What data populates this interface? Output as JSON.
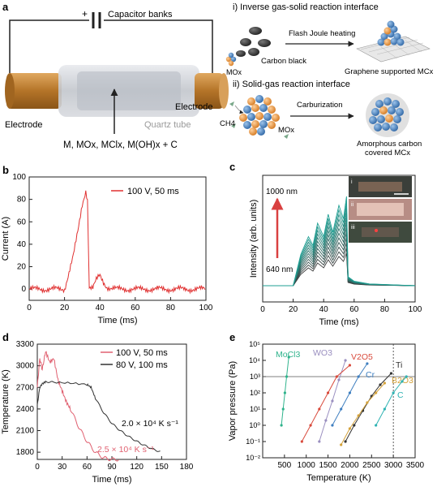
{
  "panel_labels": {
    "a": "a",
    "b": "b",
    "c": "c",
    "d": "d",
    "e": "e"
  },
  "panel_a": {
    "battery_label": "Capacitor banks",
    "plus_sign": "+",
    "electrode_left": "Electrode",
    "electrode_right": "Electrode",
    "tube_label": "Quartz tube",
    "reactants": "M, MOx, MClx, M(OH)x + C",
    "scheme_i_title": "i) Inverse gas-solid reaction interface",
    "scheme_i_mox": "MOx",
    "scheme_i_carbon": "Carbon black",
    "scheme_i_process": "Flash Joule heating",
    "scheme_i_product": "Graphene supported MCx",
    "scheme_ii_title": "ii) Solid-gas reaction interface",
    "scheme_ii_ch4": "CH4",
    "scheme_ii_mox": "MOx",
    "scheme_ii_process": "Carburization",
    "scheme_ii_product_1": "Amorphous carbon",
    "scheme_ii_product_2": "covered MCx",
    "colors": {
      "electrode": "#c8893a",
      "tube": "#c9ccd1",
      "sphere_blue": "#3f7fc0",
      "sphere_orange": "#e8963c",
      "carbon": "#3a3a3a"
    }
  },
  "chart_data": [
    {
      "id": "b",
      "type": "line",
      "xlabel": "Time (ms)",
      "ylabel": "Current (A)",
      "xlim": [
        0,
        100
      ],
      "ylim": [
        -10,
        100
      ],
      "xticks": [
        0,
        20,
        40,
        60,
        80,
        100
      ],
      "yticks": [
        0,
        20,
        40,
        60,
        80,
        100
      ],
      "legend": "100 V, 50 ms",
      "legend_position": "top-right",
      "color": "#e03030",
      "x": [
        0,
        10,
        20,
        25,
        28,
        30,
        32,
        33,
        34,
        36,
        38,
        40,
        42,
        44,
        46,
        50,
        60,
        80,
        100
      ],
      "y": [
        0,
        0,
        0,
        30,
        55,
        75,
        88,
        80,
        2,
        1,
        8,
        12,
        6,
        2,
        1,
        0,
        0,
        0,
        0
      ]
    },
    {
      "id": "c",
      "type": "line",
      "xlabel": "Time (ms)",
      "ylabel": "Intensity (arb. units)",
      "xlim": [
        0,
        100
      ],
      "xticks": [
        0,
        20,
        40,
        60,
        80,
        100
      ],
      "annotation_top": "1000 nm",
      "annotation_bottom": "640 nm",
      "inset_labels": [
        "i",
        "ii",
        "iii"
      ],
      "x": [
        0,
        20,
        25,
        30,
        33,
        36,
        40,
        43,
        46,
        50,
        53,
        55,
        56,
        60,
        70,
        100
      ],
      "y": [
        0,
        0,
        0.35,
        0.55,
        0.45,
        0.7,
        0.55,
        0.8,
        0.6,
        0.9,
        0.75,
        1.0,
        0.1,
        0.05,
        0.02,
        0
      ],
      "num_curves": 12,
      "color_low": "#3c3c3c",
      "color_high": "#1f9f93"
    },
    {
      "id": "d",
      "type": "line",
      "xlabel": "Time (ms)",
      "ylabel": "Temperature (K)",
      "xlim": [
        0,
        180
      ],
      "ylim": [
        1700,
        3300
      ],
      "xticks": [
        0,
        30,
        60,
        90,
        120,
        150,
        180
      ],
      "yticks": [
        1800,
        2100,
        2400,
        2700,
        3000,
        3300
      ],
      "legend_position": "top-right",
      "annotation_black": "2.0 × 10⁴ K s⁻¹",
      "annotation_red": "2.5 × 10⁴ K s⁻¹",
      "series": [
        {
          "name": "100 V, 50 ms",
          "color": "#e06070",
          "x": [
            0,
            3,
            6,
            10,
            15,
            20,
            25,
            30,
            35,
            40,
            50,
            60,
            70,
            80,
            90,
            100
          ],
          "y": [
            2700,
            3100,
            2950,
            3200,
            3050,
            3100,
            2800,
            2650,
            2500,
            2400,
            2150,
            1950,
            1800,
            1720,
            1700,
            1700
          ]
        },
        {
          "name": "80 V, 100 ms",
          "color": "#333333",
          "x": [
            0,
            3,
            6,
            10,
            20,
            40,
            60,
            65,
            70,
            80,
            90,
            100,
            110,
            120,
            130,
            140,
            150
          ],
          "y": [
            2450,
            2700,
            2750,
            2780,
            2770,
            2760,
            2740,
            2700,
            2550,
            2350,
            2200,
            2100,
            2020,
            1950,
            1890,
            1840,
            1800
          ]
        }
      ]
    },
    {
      "id": "e",
      "type": "line",
      "xlabel": "Temperature (K)",
      "ylabel": "Vapor pressure (Pa)",
      "xlim": [
        0,
        3500
      ],
      "ylim_log10": [
        -2,
        5
      ],
      "xticks": [
        500,
        1000,
        1500,
        2000,
        2500,
        3000,
        3500
      ],
      "ytick_labels": [
        "10⁻²",
        "10⁻¹",
        "10⁰",
        "10¹",
        "10²",
        "10³",
        "10⁴",
        "10⁵"
      ],
      "hline_log10": 3,
      "vline_x": 3000,
      "series": [
        {
          "name": "MoCl3",
          "color": "#2fb38c",
          "x": [
            430,
            470,
            510,
            550,
            600
          ],
          "y_log10": [
            0,
            1,
            2,
            3,
            4.2
          ]
        },
        {
          "name": "WO3",
          "color": "#9a8fc0",
          "x": [
            1300,
            1450,
            1600,
            1750,
            1900
          ],
          "y_log10": [
            -1,
            0.3,
            1.5,
            2.8,
            4
          ]
        },
        {
          "name": "V2O5",
          "color": "#d94a3c",
          "x": [
            900,
            1100,
            1300,
            1500,
            1700,
            2000
          ],
          "y_log10": [
            -1,
            0,
            1,
            2,
            3,
            3.7
          ]
        },
        {
          "name": "Cr",
          "color": "#3f7fc0",
          "x": [
            1600,
            1800,
            2000,
            2200,
            2400
          ],
          "y_log10": [
            0,
            1,
            2,
            3,
            3.8
          ]
        },
        {
          "name": "Ti",
          "color": "#333333",
          "x": [
            1900,
            2100,
            2300,
            2500,
            2700,
            2950
          ],
          "y_log10": [
            -1,
            0,
            0.9,
            1.8,
            2.5,
            3.2
          ]
        },
        {
          "name": "B2O3",
          "color": "#d4a23a",
          "x": [
            1800,
            2000,
            2200,
            2400,
            2600,
            2800
          ],
          "y_log10": [
            -1.2,
            -0.2,
            0.6,
            1.4,
            2,
            2.6
          ]
        },
        {
          "name": "C",
          "color": "#2fb3b3",
          "x": [
            2600,
            2800,
            3000,
            3200,
            3300
          ],
          "y_log10": [
            0,
            1,
            2,
            2.7,
            3
          ]
        }
      ]
    }
  ]
}
